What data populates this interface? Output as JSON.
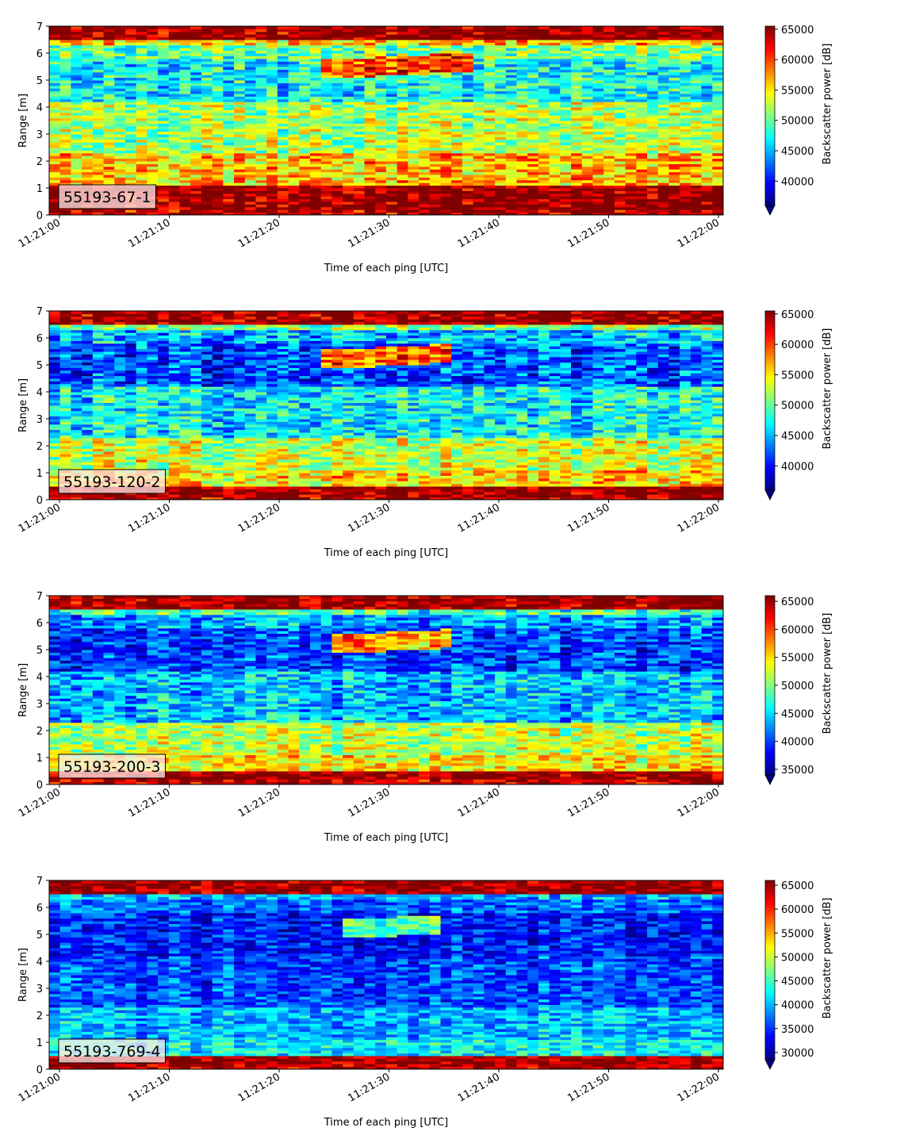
{
  "chart_data": [
    {
      "type": "heatmap",
      "label": "55193-67-1",
      "xlabel": "Time of each ping [UTC]",
      "ylabel": "Range [m]",
      "x_tick_labels": [
        "11:21:00",
        "11:21:10",
        "11:21:20",
        "11:21:30",
        "11:21:40",
        "11:21:50",
        "11:22:00"
      ],
      "y_ticks": [
        0,
        1,
        2,
        3,
        4,
        5,
        6,
        7
      ],
      "ylim": [
        0,
        7
      ],
      "colorbar": {
        "label": "Backscatter power [dB]",
        "ticks": [
          40000,
          45000,
          50000,
          55000,
          60000,
          65000
        ],
        "vmin": 36000,
        "vmax": 65500,
        "extend": "min",
        "colormap": "jet"
      },
      "features": {
        "band_top_m": 5.5,
        "band_top_value": 47000,
        "mid_value": 52000,
        "low_value": 56000,
        "blob": {
          "t_start_s": 24,
          "t_end_s": 38,
          "range_m": 5.4,
          "value": 60000
        }
      }
    },
    {
      "type": "heatmap",
      "label": "55193-120-2",
      "xlabel": "Time of each ping [UTC]",
      "ylabel": "Range [m]",
      "x_tick_labels": [
        "11:21:00",
        "11:21:10",
        "11:21:20",
        "11:21:30",
        "11:21:40",
        "11:21:50",
        "11:22:00"
      ],
      "y_ticks": [
        0,
        1,
        2,
        3,
        4,
        5,
        6,
        7
      ],
      "ylim": [
        0,
        7
      ],
      "colorbar": {
        "label": "Backscatter power [dB]",
        "ticks": [
          40000,
          45000,
          50000,
          55000,
          60000,
          65000
        ],
        "vmin": 36000,
        "vmax": 65500,
        "extend": "min",
        "colormap": "jet"
      },
      "features": {
        "band_top_m": 5.2,
        "band_top_value": 42000,
        "mid_value": 47000,
        "low_value": 53000,
        "blob": {
          "t_start_s": 24,
          "t_end_s": 36,
          "range_m": 5.2,
          "value": 59000
        }
      }
    },
    {
      "type": "heatmap",
      "label": "55193-200-3",
      "xlabel": "Time of each ping [UTC]",
      "ylabel": "Range [m]",
      "x_tick_labels": [
        "11:21:00",
        "11:21:10",
        "11:21:20",
        "11:21:30",
        "11:21:40",
        "11:21:50",
        "11:22:00"
      ],
      "y_ticks": [
        0,
        1,
        2,
        3,
        4,
        5,
        6,
        7
      ],
      "ylim": [
        0,
        7
      ],
      "colorbar": {
        "label": "Backscatter power [dB]",
        "ticks": [
          35000,
          40000,
          45000,
          50000,
          55000,
          60000,
          65000
        ],
        "vmin": 34000,
        "vmax": 66000,
        "extend": "min",
        "colormap": "jet"
      },
      "features": {
        "band_top_m": 5.2,
        "band_top_value": 40000,
        "mid_value": 44000,
        "low_value": 52000,
        "blob": {
          "t_start_s": 25,
          "t_end_s": 36,
          "range_m": 5.2,
          "value": 57000
        }
      }
    },
    {
      "type": "heatmap",
      "label": "55193-769-4",
      "xlabel": "Time of each ping [UTC]",
      "ylabel": "Range [m]",
      "x_tick_labels": [
        "11:21:00",
        "11:21:10",
        "11:21:20",
        "11:21:30",
        "11:21:40",
        "11:21:50",
        "11:22:00"
      ],
      "y_ticks": [
        0,
        1,
        2,
        3,
        4,
        5,
        6,
        7
      ],
      "ylim": [
        0,
        7
      ],
      "colorbar": {
        "label": "Backscatter power [dB]",
        "ticks": [
          30000,
          35000,
          40000,
          45000,
          50000,
          55000,
          60000,
          65000
        ],
        "vmin": 28500,
        "vmax": 66000,
        "extend": "min",
        "colormap": "jet"
      },
      "features": {
        "band_top_m": 5.5,
        "band_top_value": 34000,
        "mid_value": 36000,
        "low_value": 40000,
        "blob": {
          "t_start_s": 26,
          "t_end_s": 35,
          "range_m": 5.2,
          "value": 46000
        }
      }
    }
  ]
}
